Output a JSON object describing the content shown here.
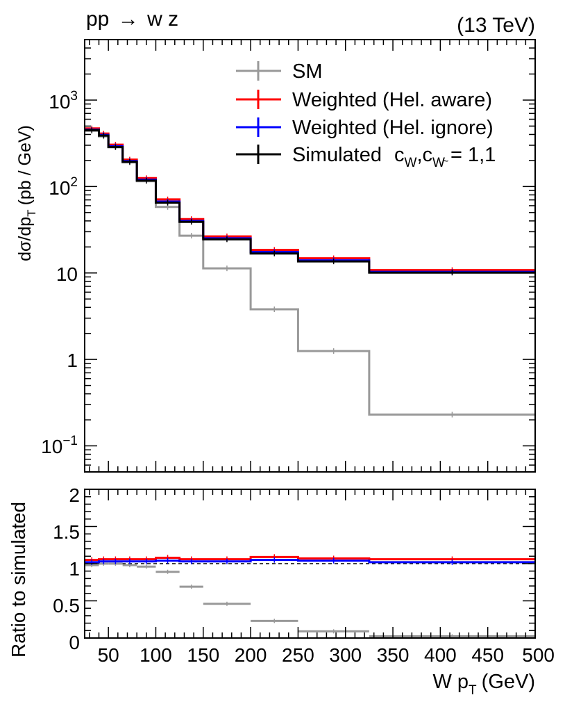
{
  "header": {
    "process_main": "pp",
    "process_arrow": "→",
    "process_final": "w z",
    "energy": "(13 TeV)"
  },
  "colors": {
    "sm": "#999999",
    "aware": "#ff0000",
    "ignore": "#0000ff",
    "sim": "#000000"
  },
  "legend": {
    "placement": "top-right",
    "sm": "SM",
    "aware": "Weighted (Hel. aware)",
    "ignore": "Weighted (Hel. ignore)",
    "sim_text": "Simulated",
    "sim_c1": "c",
    "sim_sub1": "W",
    "sim_comma": ",c",
    "sim_sub2": "W",
    "sim_tilde": "~",
    "sim_value": "= 1,1"
  },
  "chart_data": [
    {
      "type": "line",
      "drawstyle": "step-histogram",
      "ylabel_main": "dσ/dp",
      "ylabel_sub": "T",
      "ylabel_unit": "(pb / GeV)",
      "yscale": "log",
      "xlim": [
        25,
        500
      ],
      "ylim": [
        0.05,
        5000
      ],
      "grid": false,
      "ytick_labels": {
        "t1000_base": "10",
        "t1000_exp": "3",
        "t100_base": "10",
        "t100_exp": "2",
        "t10": "10",
        "t1": "1",
        "t01_base": "10",
        "t01_exp": "−1"
      },
      "bin_edges": [
        25,
        40,
        50,
        65,
        80,
        100,
        125,
        150,
        200,
        250,
        325,
        500
      ],
      "series": [
        {
          "name": "SM",
          "color": "#999999",
          "values": [
            440,
            380,
            285,
            190,
            115,
            58,
            27,
            11.3,
            3.8,
            1.25,
            0.23
          ]
        },
        {
          "name": "Weighted (Hel. aware)",
          "color": "#ff0000",
          "values": [
            470,
            410,
            305,
            205,
            125,
            71,
            42,
            26.5,
            18.5,
            14.8,
            10.8
          ]
        },
        {
          "name": "Weighted (Hel. ignore)",
          "color": "#0000ff",
          "values": [
            455,
            395,
            292,
            197,
            120,
            67,
            40,
            25.2,
            17.5,
            14.0,
            10.3
          ]
        },
        {
          "name": "Simulated",
          "color": "#000000",
          "values": [
            448,
            388,
            286,
            193,
            117,
            65,
            39,
            24.5,
            16.8,
            13.6,
            10.1
          ]
        }
      ]
    },
    {
      "type": "line",
      "drawstyle": "step-histogram",
      "ylabel": "Ratio to simulated",
      "xlabel_main": "W p",
      "xlabel_sub": "T",
      "xlabel_unit": "(GeV)",
      "xlim": [
        25,
        500
      ],
      "ylim": [
        0,
        2
      ],
      "reference_line": 1,
      "grid": false,
      "ytick_labels": {
        "t0": "0",
        "t05": "0.5",
        "t1": "1",
        "t15": "1.5",
        "t2": "2"
      },
      "xtick_labels": {
        "t50": "50",
        "t100": "100",
        "t150": "150",
        "t200": "200",
        "t250": "250",
        "t300": "300",
        "t350": "350",
        "t400": "400",
        "t450": "450",
        "t500": "500"
      },
      "bin_edges": [
        25,
        40,
        50,
        65,
        80,
        100,
        125,
        150,
        200,
        250,
        325,
        500
      ],
      "series": [
        {
          "name": "SM",
          "color": "#999999",
          "values": [
            0.98,
            1.0,
            1.0,
            0.98,
            0.96,
            0.89,
            0.69,
            0.46,
            0.23,
            0.09,
            0.023
          ]
        },
        {
          "name": "Weighted (Hel. aware)",
          "color": "#ff0000",
          "values": [
            1.05,
            1.06,
            1.06,
            1.06,
            1.06,
            1.08,
            1.06,
            1.06,
            1.09,
            1.07,
            1.06
          ]
        },
        {
          "name": "Weighted (Hel. ignore)",
          "color": "#0000ff",
          "values": [
            1.02,
            1.03,
            1.03,
            1.03,
            1.03,
            1.04,
            1.03,
            1.03,
            1.05,
            1.04,
            1.02
          ]
        }
      ]
    }
  ]
}
